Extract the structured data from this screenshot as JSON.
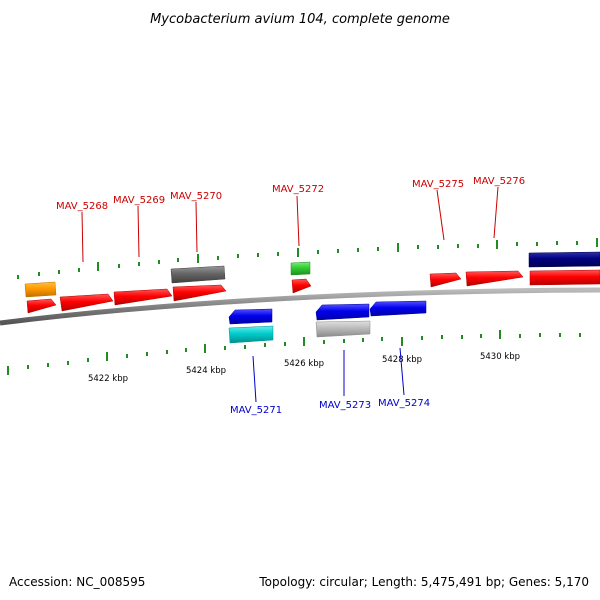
{
  "title": "Mycobacterium avium 104, complete genome",
  "footer": {
    "accession": "Accession: NC_008595",
    "summary": "Topology: circular; Length: 5,475,491 bp; Genes: 5,170"
  },
  "colors": {
    "forward_label": "#cc0000",
    "reverse_label": "#0000cc",
    "backbone": "#808080",
    "tick": "#228b22"
  },
  "scale_labels": [
    "5422 kbp",
    "5424 kbp",
    "5426 kbp",
    "5428 kbp",
    "5430 kbp"
  ],
  "forward_labels": [
    "MAV_5268",
    "MAV_5269",
    "MAV_5270",
    "MAV_5272",
    "MAV_5275",
    "MAV_5276"
  ],
  "reverse_labels": [
    "MAV_5271",
    "MAV_5273",
    "MAV_5274"
  ],
  "gene_colors": {
    "orange": "#ff9900",
    "red": "#ff0000",
    "darkgray": "#666666",
    "green": "#33cc33",
    "blue": "#0000ee",
    "cyan": "#00cccc",
    "lightgray": "#bbbbbb",
    "navy": "#000080"
  }
}
